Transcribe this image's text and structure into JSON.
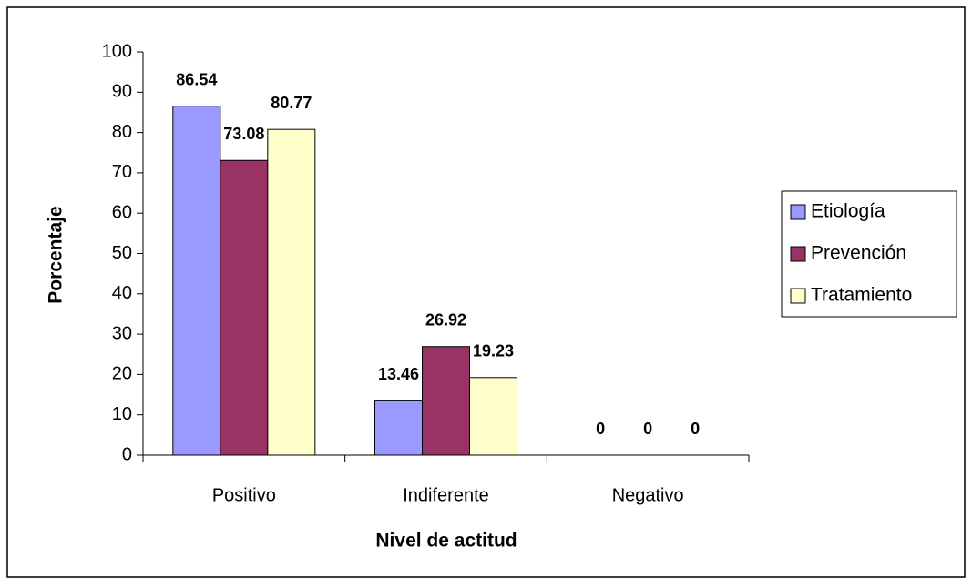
{
  "chart_data": {
    "type": "bar",
    "x_label": "Nivel de actitud",
    "y_label": "Porcentaje",
    "categories": [
      "Positivo",
      "Indiferente",
      "Negativo"
    ],
    "series": [
      {
        "name": "Etiología",
        "color": "#9999ff",
        "values": [
          86.54,
          13.46,
          0
        ]
      },
      {
        "name": "Prevención",
        "color": "#993366",
        "values": [
          73.08,
          26.92,
          0
        ]
      },
      {
        "name": "Tratamiento",
        "color": "#ffffcc",
        "values": [
          80.77,
          19.23,
          0
        ]
      }
    ],
    "ylim": [
      0,
      100
    ],
    "yticks": [
      0,
      10,
      20,
      30,
      40,
      50,
      60,
      70,
      80,
      90,
      100
    ],
    "grid": false,
    "legend": "right"
  }
}
